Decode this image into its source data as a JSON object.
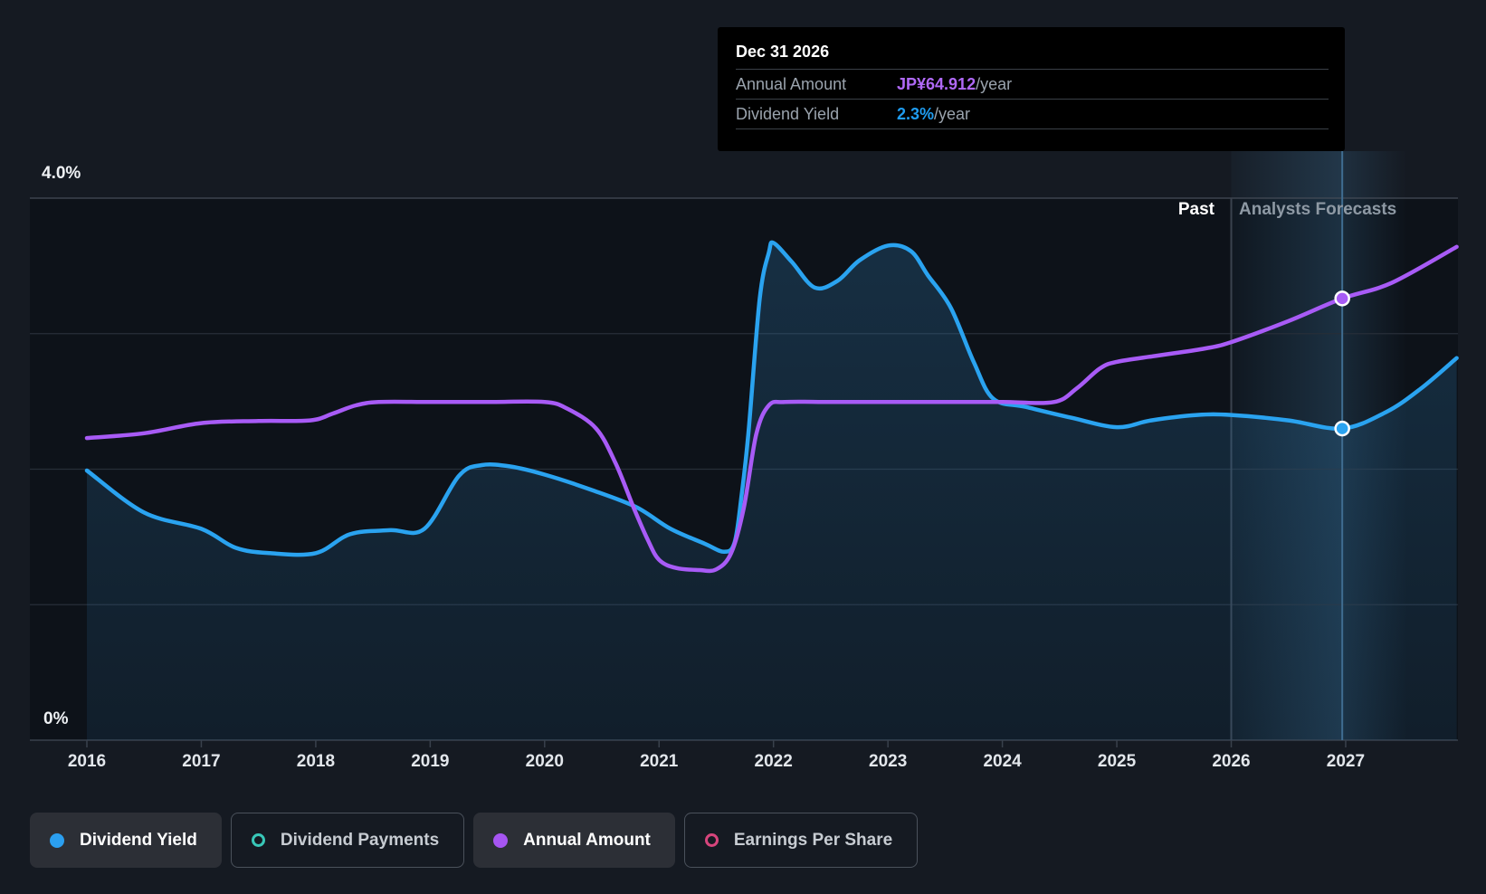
{
  "tooltip": {
    "title": "Dec 31 2026",
    "rows": [
      {
        "label": "Annual Amount",
        "value": "JP¥64.912",
        "suffix": "/year",
        "color": "#b069f7"
      },
      {
        "label": "Dividend Yield",
        "value": "2.3%",
        "suffix": "/year",
        "color": "#1f9cf0"
      }
    ]
  },
  "annotations": {
    "past_label": "Past",
    "forecast_label": "Analysts Forecasts"
  },
  "axis": {
    "y_top_label": "4.0%",
    "y_bottom_label": "0%",
    "x_labels": [
      "2016",
      "2017",
      "2018",
      "2019",
      "2020",
      "2021",
      "2022",
      "2023",
      "2024",
      "2025",
      "2026",
      "2027"
    ]
  },
  "legend": [
    {
      "label": "Dividend Yield",
      "color": "#2b9ff0",
      "style": "filled",
      "active": true
    },
    {
      "label": "Dividend Payments",
      "color": "#38c7b8",
      "style": "outline",
      "active": false
    },
    {
      "label": "Annual Amount",
      "color": "#a655f2",
      "style": "filled",
      "active": true
    },
    {
      "label": "Earnings Per Share",
      "color": "#d6457c",
      "style": "outline",
      "active": false
    }
  ],
  "colors": {
    "page_bg": "#151a22",
    "plot_bg": "#0d1219",
    "gridline": "#272e38",
    "gridline_top": "#454c57",
    "axis_line": "#39414c",
    "yield_line": "#2aa3f0",
    "amount_line": "#a85bf6",
    "crosshair": "#3f6c90",
    "forecast_divider": "#3a424e",
    "area_fill": "45,118,170",
    "band_fill": "82,160,215"
  },
  "chart_data": {
    "type": "line",
    "title": "Dividend yield history and analysts forecast",
    "x_axis": {
      "tick_labels": [
        2016,
        2017,
        2018,
        2019,
        2020,
        2021,
        2022,
        2023,
        2024,
        2025,
        2026,
        2027
      ],
      "range": [
        2015.5,
        2028.0
      ]
    },
    "y_axis": {
      "tick_labels": [
        "0%",
        "4.0%"
      ],
      "range_pct": [
        0,
        4.0
      ],
      "gridline_step_pct": 1.0,
      "grid": true
    },
    "legend_position": "bottom",
    "forecast_divider_x": 2026.0,
    "marker": {
      "x": 2026.97,
      "date": "Dec 31 2026",
      "dividend_yield_pct": 2.3,
      "annual_amount_jpy": 64.912
    },
    "series": [
      {
        "name": "Dividend Yield",
        "unit": "%",
        "color": "#2aa3f0",
        "area": true,
        "points": [
          [
            2016.0,
            1.99
          ],
          [
            2016.5,
            1.68
          ],
          [
            2017.0,
            1.56
          ],
          [
            2017.3,
            1.42
          ],
          [
            2017.6,
            1.38
          ],
          [
            2018.0,
            1.38
          ],
          [
            2018.3,
            1.52
          ],
          [
            2018.65,
            1.55
          ],
          [
            2018.95,
            1.56
          ],
          [
            2019.25,
            1.95
          ],
          [
            2019.45,
            2.03
          ],
          [
            2019.7,
            2.02
          ],
          [
            2020.0,
            1.96
          ],
          [
            2020.4,
            1.85
          ],
          [
            2020.8,
            1.72
          ],
          [
            2021.1,
            1.56
          ],
          [
            2021.4,
            1.45
          ],
          [
            2021.57,
            1.39
          ],
          [
            2021.66,
            1.46
          ],
          [
            2021.72,
            1.8
          ],
          [
            2021.78,
            2.26
          ],
          [
            2021.88,
            3.26
          ],
          [
            2021.96,
            3.6
          ],
          [
            2022.0,
            3.67
          ],
          [
            2022.16,
            3.53
          ],
          [
            2022.36,
            3.34
          ],
          [
            2022.56,
            3.39
          ],
          [
            2022.75,
            3.54
          ],
          [
            2023.0,
            3.65
          ],
          [
            2023.2,
            3.61
          ],
          [
            2023.35,
            3.43
          ],
          [
            2023.55,
            3.19
          ],
          [
            2023.75,
            2.79
          ],
          [
            2023.92,
            2.52
          ],
          [
            2024.2,
            2.46
          ],
          [
            2024.6,
            2.38
          ],
          [
            2025.0,
            2.31
          ],
          [
            2025.3,
            2.36
          ],
          [
            2025.7,
            2.4
          ],
          [
            2026.0,
            2.4
          ],
          [
            2026.5,
            2.36
          ],
          [
            2026.97,
            2.3
          ],
          [
            2027.35,
            2.42
          ],
          [
            2027.65,
            2.59
          ],
          [
            2027.97,
            2.82
          ]
        ]
      },
      {
        "name": "Annual Amount",
        "unit": "JP¥/year",
        "color": "#a85bf6",
        "area": false,
        "points": [
          [
            2016.0,
            44.4
          ],
          [
            2016.5,
            45.1
          ],
          [
            2017.0,
            46.6
          ],
          [
            2017.5,
            46.9
          ],
          [
            2017.95,
            47.0
          ],
          [
            2018.15,
            48.0
          ],
          [
            2018.35,
            49.2
          ],
          [
            2018.55,
            49.7
          ],
          [
            2019.0,
            49.7
          ],
          [
            2019.5,
            49.7
          ],
          [
            2020.0,
            49.7
          ],
          [
            2020.2,
            48.7
          ],
          [
            2020.45,
            45.8
          ],
          [
            2020.62,
            40.7
          ],
          [
            2020.78,
            34.1
          ],
          [
            2020.9,
            29.5
          ],
          [
            2021.0,
            26.5
          ],
          [
            2021.15,
            25.3
          ],
          [
            2021.35,
            25.0
          ],
          [
            2021.5,
            25.1
          ],
          [
            2021.63,
            27.5
          ],
          [
            2021.74,
            34.1
          ],
          [
            2021.85,
            45.0
          ],
          [
            2021.96,
            49.2
          ],
          [
            2022.1,
            49.7
          ],
          [
            2022.5,
            49.7
          ],
          [
            2023.0,
            49.7
          ],
          [
            2023.5,
            49.7
          ],
          [
            2024.0,
            49.7
          ],
          [
            2024.45,
            49.7
          ],
          [
            2024.65,
            51.7
          ],
          [
            2024.85,
            54.6
          ],
          [
            2025.0,
            55.6
          ],
          [
            2025.35,
            56.5
          ],
          [
            2025.75,
            57.5
          ],
          [
            2026.0,
            58.5
          ],
          [
            2026.5,
            61.6
          ],
          [
            2026.97,
            64.912
          ],
          [
            2027.4,
            67.2
          ],
          [
            2027.97,
            72.5
          ]
        ]
      }
    ]
  }
}
